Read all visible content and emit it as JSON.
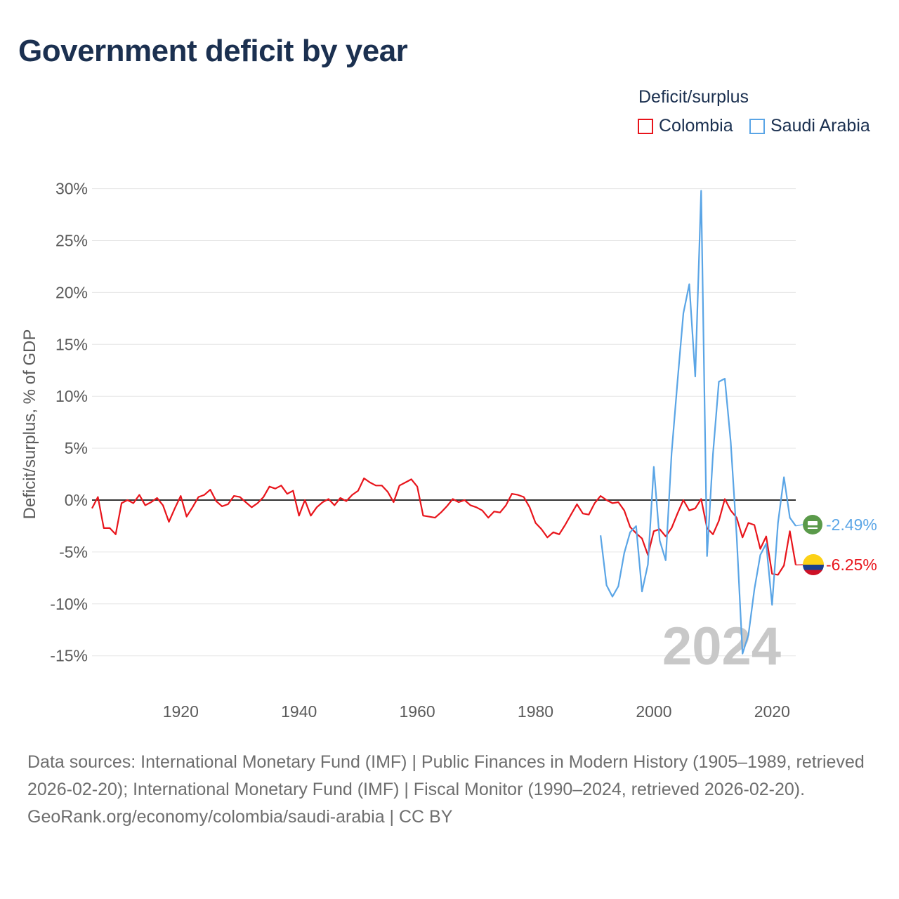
{
  "title": "Government deficit by year",
  "legend": {
    "title": "Deficit/surplus",
    "items": [
      {
        "name": "Colombia",
        "color": "#e8141b"
      },
      {
        "name": "Saudi Arabia",
        "color": "#5aa5e6"
      }
    ]
  },
  "year_watermark": "2024",
  "end_labels": {
    "saudi_arabia": {
      "text": "-2.49%",
      "icon": "saudi-arabia-flag-icon"
    },
    "colombia": {
      "text": "-6.25%",
      "icon": "colombia-flag-icon"
    }
  },
  "footer": {
    "sources": "Data sources: International Monetary Fund (IMF) | Public Finances in Modern History (1905–1989, retrieved 2026-02-20); International Monetary Fund (IMF) | Fiscal Monitor (1990–2024, retrieved 2026-02-20).",
    "credit": "GeoRank.org/economy/colombia/saudi-arabia | CC BY"
  },
  "chart_data": {
    "type": "line",
    "title": "Government deficit by year",
    "xlabel": "",
    "ylabel": "Deficit/surplus, % of GDP",
    "xlim": [
      1905,
      2024
    ],
    "ylim": [
      -17,
      33
    ],
    "x_ticks": [
      1920,
      1940,
      1960,
      1980,
      2000,
      2020
    ],
    "y_ticks": [
      30,
      25,
      20,
      15,
      10,
      5,
      0,
      -5,
      -10,
      -15
    ],
    "y_tick_labels": [
      "30%",
      "25%",
      "20%",
      "15%",
      "10%",
      "5%",
      "0%",
      "-5%",
      "-10%",
      "-15%"
    ],
    "zero_line": true,
    "grid": true,
    "series": [
      {
        "name": "Colombia",
        "color": "#e8141b",
        "x": [
          1905,
          1906,
          1907,
          1908,
          1909,
          1910,
          1911,
          1912,
          1913,
          1914,
          1915,
          1916,
          1917,
          1918,
          1919,
          1920,
          1921,
          1922,
          1923,
          1924,
          1925,
          1926,
          1927,
          1928,
          1929,
          1930,
          1931,
          1932,
          1933,
          1934,
          1935,
          1936,
          1937,
          1938,
          1939,
          1940,
          1941,
          1942,
          1943,
          1944,
          1945,
          1946,
          1947,
          1948,
          1949,
          1950,
          1951,
          1952,
          1953,
          1954,
          1955,
          1956,
          1957,
          1958,
          1959,
          1960,
          1961,
          1962,
          1963,
          1964,
          1965,
          1966,
          1967,
          1968,
          1969,
          1970,
          1971,
          1972,
          1973,
          1974,
          1975,
          1976,
          1977,
          1978,
          1979,
          1980,
          1981,
          1982,
          1983,
          1984,
          1985,
          1986,
          1987,
          1988,
          1989,
          1990,
          1991,
          1992,
          1993,
          1994,
          1995,
          1996,
          1997,
          1998,
          1999,
          2000,
          2001,
          2002,
          2003,
          2004,
          2005,
          2006,
          2007,
          2008,
          2009,
          2010,
          2011,
          2012,
          2013,
          2014,
          2015,
          2016,
          2017,
          2018,
          2019,
          2020,
          2021,
          2022,
          2023,
          2024
        ],
        "values": [
          -0.8,
          0.3,
          -2.7,
          -2.7,
          -3.3,
          -0.3,
          0.0,
          -0.3,
          0.5,
          -0.5,
          -0.2,
          0.2,
          -0.5,
          -2.1,
          -0.8,
          0.4,
          -1.6,
          -0.7,
          0.3,
          0.5,
          1.0,
          -0.1,
          -0.6,
          -0.4,
          0.4,
          0.3,
          -0.2,
          -0.7,
          -0.3,
          0.3,
          1.3,
          1.1,
          1.4,
          0.6,
          0.9,
          -1.5,
          0.0,
          -1.5,
          -0.7,
          -0.2,
          0.1,
          -0.5,
          0.2,
          -0.1,
          0.5,
          0.9,
          2.1,
          1.7,
          1.4,
          1.4,
          0.8,
          -0.2,
          1.4,
          1.7,
          2.0,
          1.3,
          -1.5,
          -1.6,
          -1.7,
          -1.2,
          -0.6,
          0.1,
          -0.2,
          0.0,
          -0.5,
          -0.7,
          -1.0,
          -1.7,
          -1.1,
          -1.2,
          -0.5,
          0.6,
          0.5,
          0.3,
          -0.7,
          -2.2,
          -2.8,
          -3.6,
          -3.1,
          -3.3,
          -2.4,
          -1.4,
          -0.4,
          -1.3,
          -1.4,
          -0.3,
          0.4,
          0.0,
          -0.3,
          -0.2,
          -1.0,
          -2.6,
          -3.2,
          -3.7,
          -5.3,
          -3.0,
          -2.8,
          -3.5,
          -2.7,
          -1.3,
          0.0,
          -1.0,
          -0.8,
          0.1,
          -2.7,
          -3.3,
          -2.0,
          0.1,
          -1.0,
          -1.7,
          -3.6,
          -2.2,
          -2.4,
          -4.7,
          -3.5,
          -7.1,
          -7.2,
          -6.3,
          -3.0,
          -6.25
        ]
      },
      {
        "name": "Saudi Arabia",
        "color": "#5aa5e6",
        "x": [
          1991,
          1992,
          1993,
          1994,
          1995,
          1996,
          1997,
          1998,
          1999,
          2000,
          2001,
          2002,
          2003,
          2004,
          2005,
          2006,
          2007,
          2008,
          2009,
          2010,
          2011,
          2012,
          2013,
          2014,
          2015,
          2016,
          2017,
          2018,
          2019,
          2020,
          2021,
          2022,
          2023,
          2024
        ],
        "values": [
          -3.4,
          -8.2,
          -9.3,
          -8.3,
          -5.1,
          -3.1,
          -2.5,
          -8.8,
          -6.2,
          3.2,
          -3.9,
          -5.8,
          4.5,
          11.4,
          18.0,
          20.8,
          11.9,
          29.8,
          -5.4,
          4.4,
          11.4,
          11.7,
          5.6,
          -3.4,
          -14.8,
          -13.0,
          -8.6,
          -5.3,
          -4.2,
          -10.1,
          -2.2,
          2.2,
          -1.7,
          -2.49
        ]
      }
    ]
  }
}
